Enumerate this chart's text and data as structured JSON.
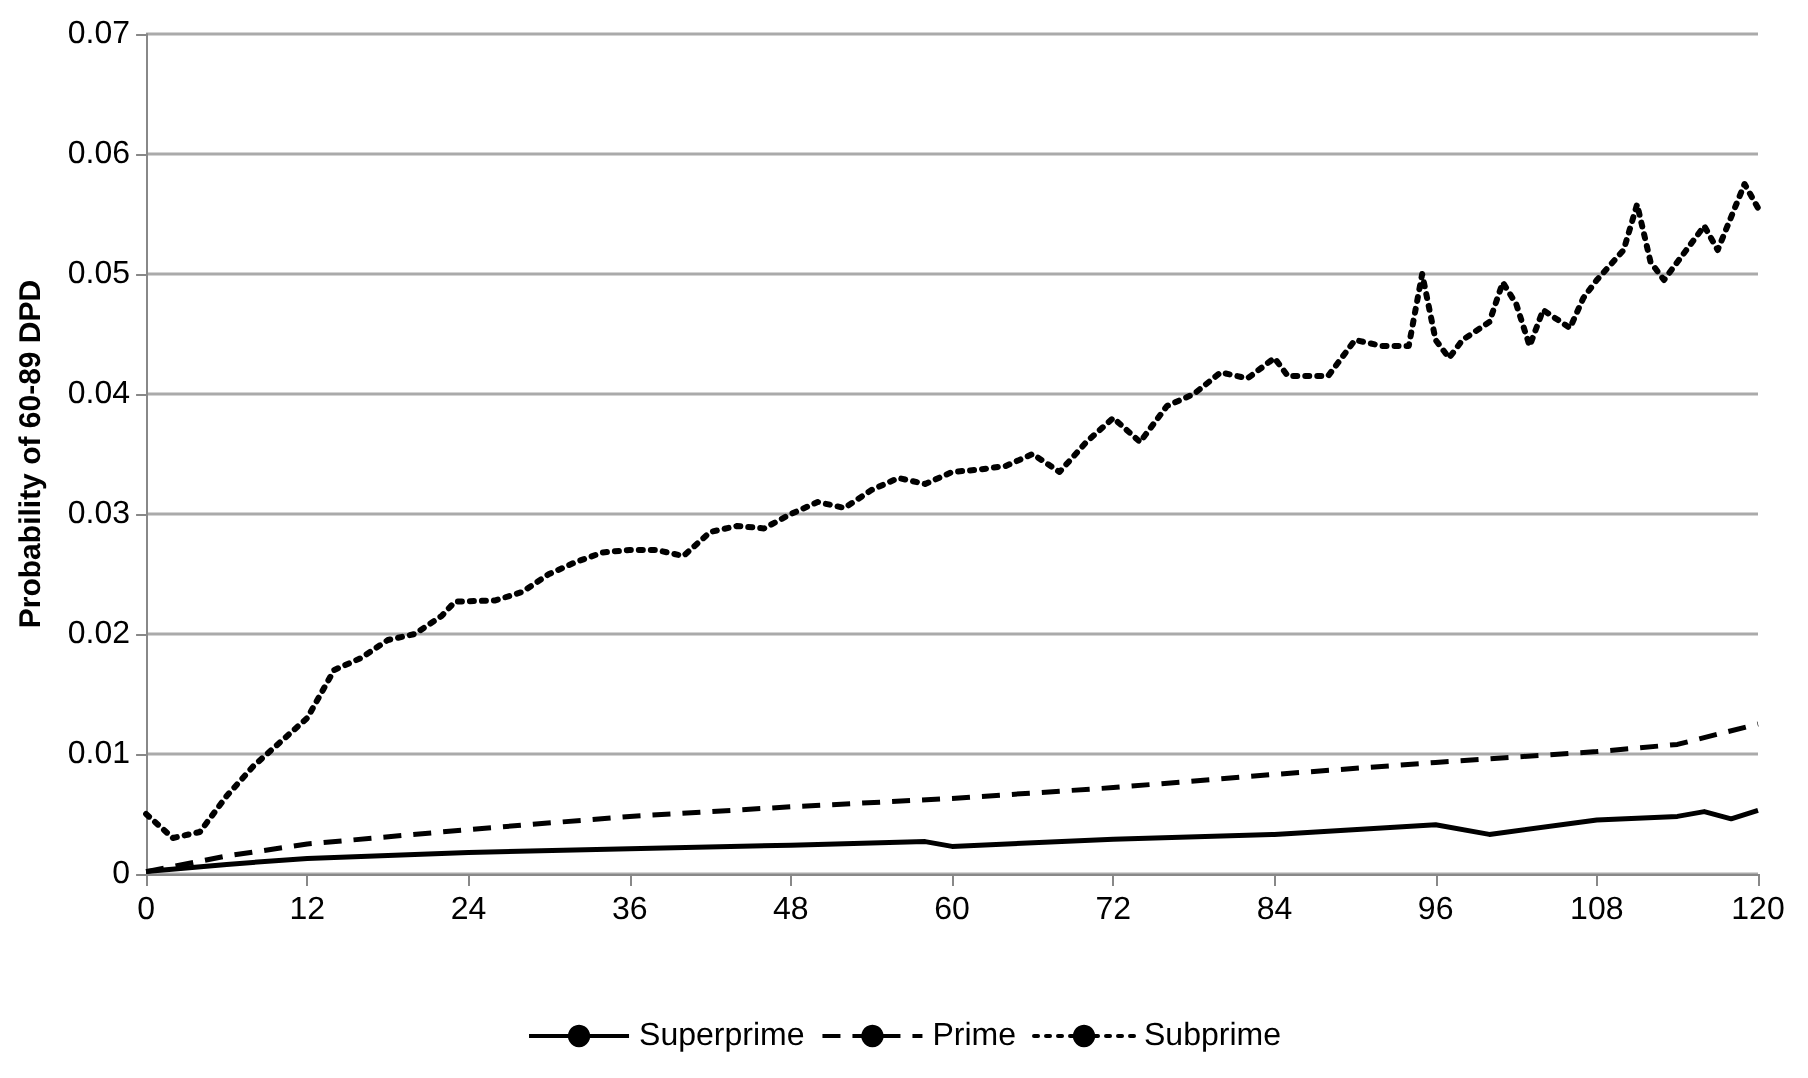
{
  "chart_data": {
    "type": "line",
    "ylabel": "Probability of 60-89 DPD",
    "xlim": [
      0,
      120
    ],
    "xticks": [
      0,
      12,
      24,
      36,
      48,
      60,
      72,
      84,
      96,
      108,
      120
    ],
    "ylim": [
      0,
      0.07
    ],
    "yticks": [
      0,
      0.01,
      0.02,
      0.03,
      0.04,
      0.05,
      0.06,
      0.07
    ],
    "grid": "y",
    "legend": "bottom",
    "marker": "none",
    "series": [
      {
        "name": "Superprime",
        "color": "#000000",
        "line_style": "solid",
        "x": [
          0,
          6,
          12,
          24,
          36,
          48,
          58,
          60,
          72,
          84,
          96,
          100,
          108,
          114,
          116,
          118,
          120
        ],
        "values": [
          0.0002,
          0.0008,
          0.0013,
          0.0018,
          0.0021,
          0.0024,
          0.0027,
          0.0023,
          0.0029,
          0.0033,
          0.0041,
          0.0033,
          0.0045,
          0.0048,
          0.0052,
          0.0046,
          0.0053
        ]
      },
      {
        "name": "Prime",
        "color": "#000000",
        "line_style": "dashed",
        "x": [
          0,
          6,
          12,
          24,
          36,
          48,
          60,
          72,
          84,
          96,
          108,
          114,
          120
        ],
        "values": [
          0.0002,
          0.0015,
          0.0025,
          0.0037,
          0.0048,
          0.0056,
          0.0063,
          0.0072,
          0.0083,
          0.0093,
          0.0102,
          0.0108,
          0.0125
        ]
      },
      {
        "name": "Subprime",
        "color": "#000000",
        "line_style": "dotted",
        "x": [
          0,
          2,
          4,
          6,
          8,
          10,
          12,
          14,
          16,
          18,
          20,
          22,
          23,
          26,
          28,
          30,
          32,
          34,
          36,
          38,
          40,
          42,
          44,
          46,
          48,
          50,
          52,
          54,
          56,
          58,
          60,
          62,
          64,
          66,
          68,
          70,
          72,
          74,
          76,
          78,
          80,
          82,
          84,
          85,
          88,
          90,
          92,
          94,
          95,
          96,
          97,
          98,
          100,
          101,
          102,
          103,
          104,
          106,
          107,
          108,
          110,
          111,
          112,
          113,
          114,
          116,
          117,
          119,
          120
        ],
        "values": [
          0.005,
          0.003,
          0.0035,
          0.0065,
          0.009,
          0.011,
          0.013,
          0.017,
          0.018,
          0.0195,
          0.02,
          0.0215,
          0.0227,
          0.0228,
          0.0235,
          0.025,
          0.026,
          0.0268,
          0.027,
          0.027,
          0.0265,
          0.0285,
          0.029,
          0.0288,
          0.03,
          0.031,
          0.0305,
          0.032,
          0.033,
          0.0325,
          0.0335,
          0.0337,
          0.034,
          0.035,
          0.0335,
          0.036,
          0.038,
          0.036,
          0.039,
          0.04,
          0.0418,
          0.0413,
          0.043,
          0.0415,
          0.0415,
          0.0445,
          0.044,
          0.044,
          0.05,
          0.0445,
          0.043,
          0.0445,
          0.046,
          0.0493,
          0.0475,
          0.044,
          0.047,
          0.0455,
          0.048,
          0.0495,
          0.052,
          0.0558,
          0.051,
          0.0495,
          0.051,
          0.054,
          0.052,
          0.0575,
          0.0555
        ]
      }
    ]
  }
}
